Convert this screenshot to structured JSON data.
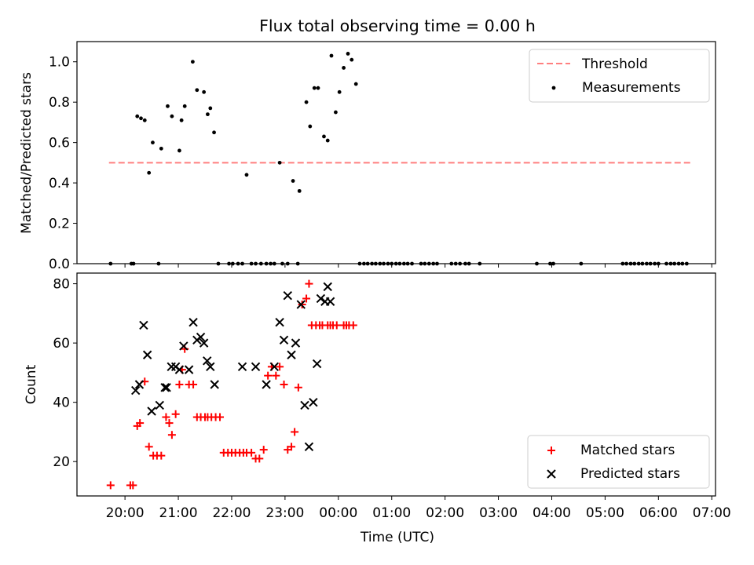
{
  "figure": {
    "title": "Flux total observing time = 0.00 h"
  },
  "chart_data": [
    {
      "type": "scatter",
      "panel": "top",
      "ylabel": "Matched/Predicted stars",
      "ylim": [
        0,
        1.1
      ],
      "yticks": [
        0.0,
        0.2,
        0.4,
        0.6,
        0.8,
        1.0
      ],
      "ytick_labels": [
        "0.0",
        "0.2",
        "0.4",
        "0.6",
        "0.8",
        "1.0"
      ],
      "xlim_hours": [
        -4.9,
        7.07
      ],
      "xticks_hours": [
        -4,
        -3,
        -2,
        -1,
        0,
        1,
        2,
        3,
        4,
        5,
        6,
        7
      ],
      "legend_position": "top-right",
      "colors": {
        "threshold": "#ff7f7f",
        "measurements": "#000000"
      },
      "series": [
        {
          "name": "Threshold",
          "kind": "dashed-line",
          "x": [
            -4.3,
            6.62
          ],
          "y": [
            0.5,
            0.5
          ]
        },
        {
          "name": "Measurements",
          "kind": "points",
          "x": [
            -4.27,
            -3.88,
            -3.84,
            -3.77,
            -3.7,
            -3.63,
            -3.55,
            -3.48,
            -3.37,
            -3.32,
            -3.2,
            -3.12,
            -2.98,
            -2.94,
            -2.88,
            -2.73,
            -2.65,
            -2.52,
            -2.45,
            -2.4,
            -2.33,
            -2.25,
            -2.05,
            -1.98,
            -1.88,
            -1.8,
            -1.72,
            -1.63,
            -1.55,
            -1.45,
            -1.35,
            -1.27,
            -1.2,
            -1.1,
            -1.05,
            -0.95,
            -0.85,
            -0.76,
            -0.73,
            -0.6,
            -0.53,
            -0.45,
            -0.38,
            -0.27,
            -0.2,
            -0.13,
            -0.05,
            0.02,
            0.1,
            0.18,
            0.25,
            0.33,
            0.4,
            0.48,
            0.55,
            0.63,
            0.7,
            0.78,
            0.85,
            0.93,
            1.0,
            1.08,
            1.15,
            1.23,
            1.3,
            1.38,
            1.55,
            1.62,
            1.7,
            1.78,
            1.85,
            2.12,
            2.2,
            2.28,
            2.38,
            2.45,
            2.65,
            3.72,
            3.97,
            4.03,
            4.55,
            5.33,
            5.4,
            5.48,
            5.55,
            5.63,
            5.7,
            5.78,
            5.85,
            5.93,
            6.0,
            6.15,
            6.23,
            6.3,
            6.38,
            6.45,
            6.53
          ],
          "y": [
            0.0,
            0.0,
            0.0,
            0.73,
            0.72,
            0.71,
            0.45,
            0.6,
            0.0,
            0.57,
            0.78,
            0.73,
            0.56,
            0.71,
            0.78,
            1.0,
            0.86,
            0.85,
            0.74,
            0.77,
            0.65,
            0.0,
            0.0,
            0.0,
            0.0,
            0.0,
            0.44,
            0.0,
            0.0,
            0.0,
            0.0,
            0.0,
            0.0,
            0.5,
            0.0,
            0.0,
            0.41,
            0.0,
            0.36,
            0.8,
            0.68,
            0.87,
            0.87,
            0.63,
            0.61,
            1.03,
            0.75,
            0.85,
            0.97,
            1.04,
            1.01,
            0.89,
            0.0,
            0.0,
            0.0,
            0.0,
            0.0,
            0.0,
            0.0,
            0.0,
            0.0,
            0.0,
            0.0,
            0.0,
            0.0,
            0.0,
            0.0,
            0.0,
            0.0,
            0.0,
            0.0,
            0.0,
            0.0,
            0.0,
            0.0,
            0.0,
            0.0,
            0.0,
            0.0,
            0.0,
            0.0,
            0.0,
            0.0,
            0.0,
            0.0,
            0.0,
            0.0,
            0.0,
            0.0,
            0.0,
            0.0,
            0.0,
            0.0,
            0.0,
            0.0,
            0.0,
            0.0
          ]
        }
      ]
    },
    {
      "type": "scatter",
      "panel": "bottom",
      "xlabel": "Time (UTC)",
      "ylabel": "Count",
      "ylim": [
        8.4,
        83.6
      ],
      "yticks": [
        20,
        40,
        60,
        80
      ],
      "ytick_labels": [
        "20",
        "40",
        "60",
        "80"
      ],
      "xlim_hours": [
        -4.9,
        7.07
      ],
      "xticks_hours": [
        -4,
        -3,
        -2,
        -1,
        0,
        1,
        2,
        3,
        4,
        5,
        6,
        7
      ],
      "xtick_labels": [
        "20:00",
        "21:00",
        "22:00",
        "23:00",
        "00:00",
        "01:00",
        "02:00",
        "03:00",
        "04:00",
        "05:00",
        "06:00",
        "07:00"
      ],
      "legend_position": "bottom-right",
      "colors": {
        "matched": "#ff0000",
        "predicted": "#000000"
      },
      "series": [
        {
          "name": "Matched stars",
          "marker": "plus",
          "x": [
            -4.27,
            -3.9,
            -3.85,
            -3.77,
            -3.72,
            -3.63,
            -3.55,
            -3.47,
            -3.4,
            -3.32,
            -3.23,
            -3.17,
            -3.12,
            -3.05,
            -2.98,
            -2.93,
            -2.88,
            -2.8,
            -2.72,
            -2.65,
            -2.58,
            -2.5,
            -2.45,
            -2.38,
            -2.3,
            -2.22,
            -2.15,
            -2.07,
            -2.0,
            -1.93,
            -1.85,
            -1.78,
            -1.72,
            -1.63,
            -1.55,
            -1.48,
            -1.4,
            -1.32,
            -1.25,
            -1.17,
            -1.1,
            -1.02,
            -0.95,
            -0.88,
            -0.82,
            -0.75,
            -0.68,
            -0.6,
            -0.55,
            -0.5,
            -0.42,
            -0.35,
            -0.3,
            -0.2,
            -0.15,
            -0.1,
            -0.03,
            0.1,
            0.15,
            0.2,
            0.28
          ],
          "y": [
            12,
            12,
            12,
            32,
            33,
            47,
            25,
            22,
            22,
            22,
            35,
            33,
            29,
            36,
            46,
            51,
            58,
            46,
            46,
            35,
            35,
            35,
            35,
            35,
            35,
            35,
            23,
            23,
            23,
            23,
            23,
            23,
            23,
            23,
            21,
            21,
            24,
            49,
            52,
            49,
            52,
            46,
            24,
            25,
            30,
            45,
            73,
            75,
            80,
            66,
            66,
            66,
            66,
            66,
            66,
            66,
            66,
            66,
            66,
            66,
            66
          ]
        },
        {
          "name": "Predicted stars",
          "marker": "x",
          "x": [
            -3.8,
            -3.73,
            -3.65,
            -3.58,
            -3.5,
            -3.35,
            -3.25,
            -3.22,
            -3.13,
            -3.05,
            -2.98,
            -2.9,
            -2.8,
            -2.72,
            -2.65,
            -2.58,
            -2.52,
            -2.46,
            -2.4,
            -2.32,
            -1.8,
            -1.55,
            -1.35,
            -1.2,
            -1.1,
            -1.02,
            -0.95,
            -0.88,
            -0.8,
            -0.7,
            -0.63,
            -0.55,
            -0.47,
            -0.4,
            -0.33,
            -0.25,
            -0.2,
            -0.15
          ],
          "y": [
            44,
            46,
            66,
            56,
            37,
            39,
            45,
            45,
            52,
            52,
            51,
            59,
            51,
            67,
            61,
            62,
            60,
            54,
            52,
            46,
            52,
            52,
            46,
            52,
            67,
            61,
            76,
            56,
            60,
            73,
            39,
            25,
            40,
            53,
            75,
            74,
            79,
            74
          ]
        }
      ]
    }
  ]
}
